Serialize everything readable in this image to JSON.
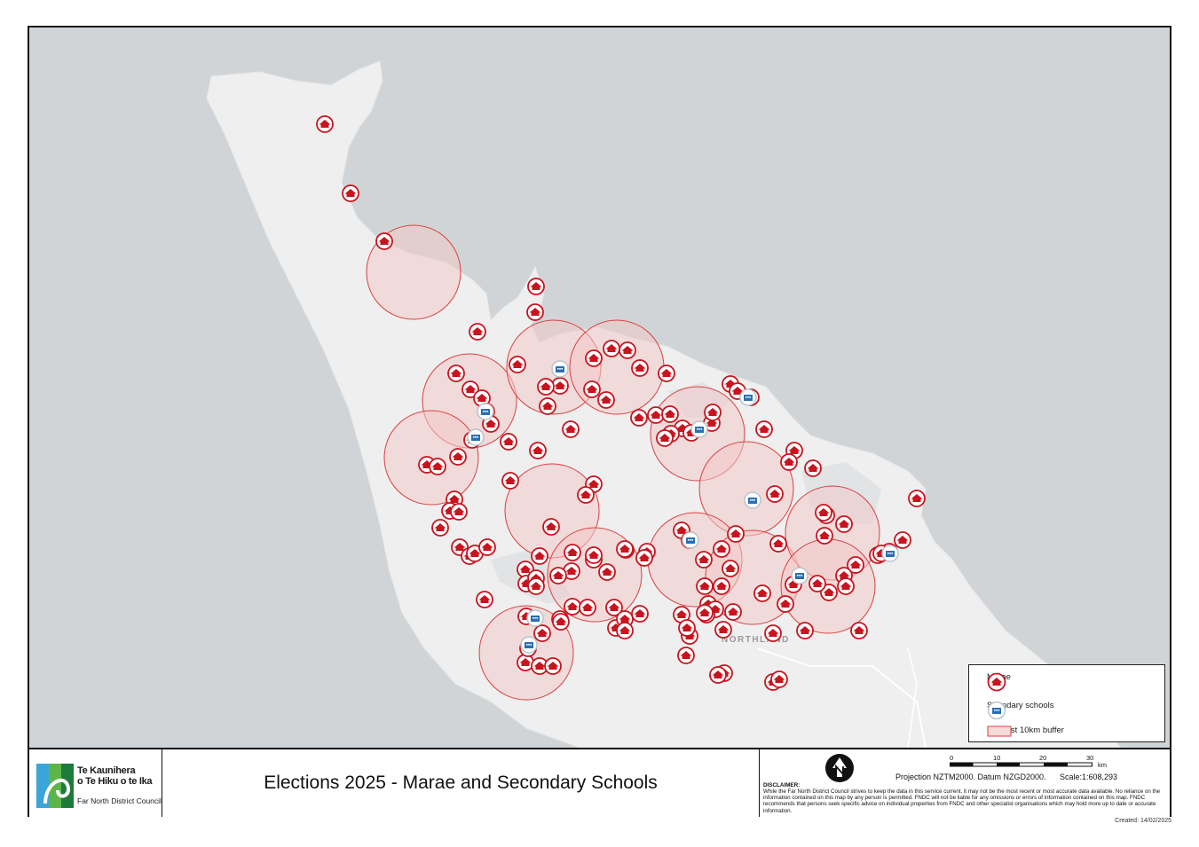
{
  "title": "Elections 2025 - Marae and Secondary Schools",
  "logo": {
    "line1": "Te Kaunihera",
    "line2": "o Te Hiku o te Ika",
    "line3": "Far North District Council"
  },
  "map_labels": {
    "region": "NORTHLAND"
  },
  "legend": {
    "marae": "Marae",
    "schools": "Seondary schools",
    "buffer": "NZ Post 10km buffer"
  },
  "projection": "Projection NZTM2000. Datum NZGD2000.",
  "scale": "Scale:1:608,293",
  "scalebar": {
    "ticks": [
      "0",
      "10",
      "20",
      "30"
    ],
    "unit": "km"
  },
  "disclaimer_title": "DISCLAIMER:",
  "disclaimer": "While the Far North District Council strives to keep the data in this service current, it may not be the most recent or most accurate data available. No reliance on the information contained on this map by any person is permitted. FNDC will not be liable for any omissions or errors of information contained on this map.  FNDC recommends that persons seek specific advice on individual properties from FNDC and other specialist organisations which may hold more up to date or accurate information.",
  "created": "Created: 14/02/2025",
  "colors": {
    "sea": "#d1d4d6",
    "land": "#f0f0f0",
    "buffer_fill": "#f2c8c8",
    "buffer_stroke": "#d94040",
    "marae": "#c8141e",
    "school": "#2a6fb5"
  }
}
